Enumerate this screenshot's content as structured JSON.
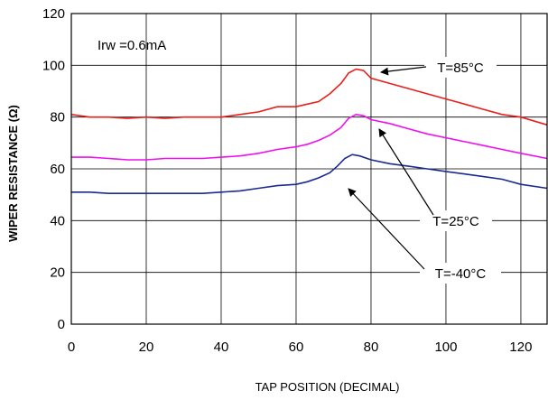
{
  "chart_data": {
    "type": "line",
    "title": "",
    "xlabel": "TAP POSITION (DECIMAL)",
    "ylabel": "WIPER RESISTANCE (Ω)",
    "xlim": [
      0,
      127
    ],
    "ylim": [
      0,
      120
    ],
    "xticks": [
      "0",
      "20",
      "40",
      "60",
      "80",
      "100",
      "120"
    ],
    "yticks": [
      "0",
      "20",
      "40",
      "60",
      "80",
      "100",
      "120"
    ],
    "grid": true,
    "annotation_irw": "Irw =0.6mA",
    "series": [
      {
        "name": "T=85°C",
        "color": "#e8201a",
        "x": [
          0,
          5,
          10,
          15,
          20,
          25,
          30,
          35,
          40,
          45,
          50,
          55,
          60,
          63,
          66,
          69,
          72,
          74,
          76,
          78,
          80,
          85,
          90,
          95,
          100,
          105,
          110,
          115,
          120,
          127
        ],
        "y": [
          81,
          80,
          80,
          79.5,
          80,
          79.5,
          80,
          80,
          80,
          81,
          82,
          84,
          84,
          85,
          86,
          89,
          93,
          97,
          98.5,
          98,
          95,
          93,
          91,
          89,
          87,
          85,
          83,
          81,
          80,
          77
        ]
      },
      {
        "name": "T=25°C",
        "color": "#ee10ee",
        "x": [
          0,
          5,
          10,
          15,
          20,
          25,
          30,
          35,
          40,
          45,
          50,
          55,
          60,
          63,
          66,
          69,
          72,
          74,
          76,
          78,
          80,
          85,
          90,
          95,
          100,
          105,
          110,
          115,
          120,
          127
        ],
        "y": [
          64.5,
          64.5,
          64,
          63.5,
          63.5,
          64,
          64,
          64,
          64.5,
          65,
          66,
          67.5,
          68.5,
          69.5,
          71,
          73,
          76,
          79.5,
          81,
          80.5,
          79,
          77.5,
          75.5,
          73.5,
          72,
          70.5,
          69,
          67.5,
          66,
          64
        ]
      },
      {
        "name": "T=-40°C",
        "color": "#1a2a90",
        "x": [
          0,
          5,
          10,
          15,
          20,
          25,
          30,
          35,
          40,
          45,
          50,
          55,
          60,
          63,
          66,
          69,
          71,
          73,
          75,
          77,
          80,
          85,
          90,
          95,
          100,
          105,
          110,
          115,
          120,
          127
        ],
        "y": [
          51,
          51,
          50.5,
          50.5,
          50.5,
          50.5,
          50.5,
          50.5,
          51,
          51.5,
          52.5,
          53.5,
          54,
          55,
          56.5,
          58.5,
          61,
          64,
          65.5,
          65,
          63.5,
          62,
          61,
          60,
          59,
          58,
          57,
          56,
          54,
          52.5
        ]
      }
    ],
    "callouts": [
      {
        "label": "T=85°C"
      },
      {
        "label": "T=25°C"
      },
      {
        "label": "T=-40°C"
      }
    ]
  }
}
